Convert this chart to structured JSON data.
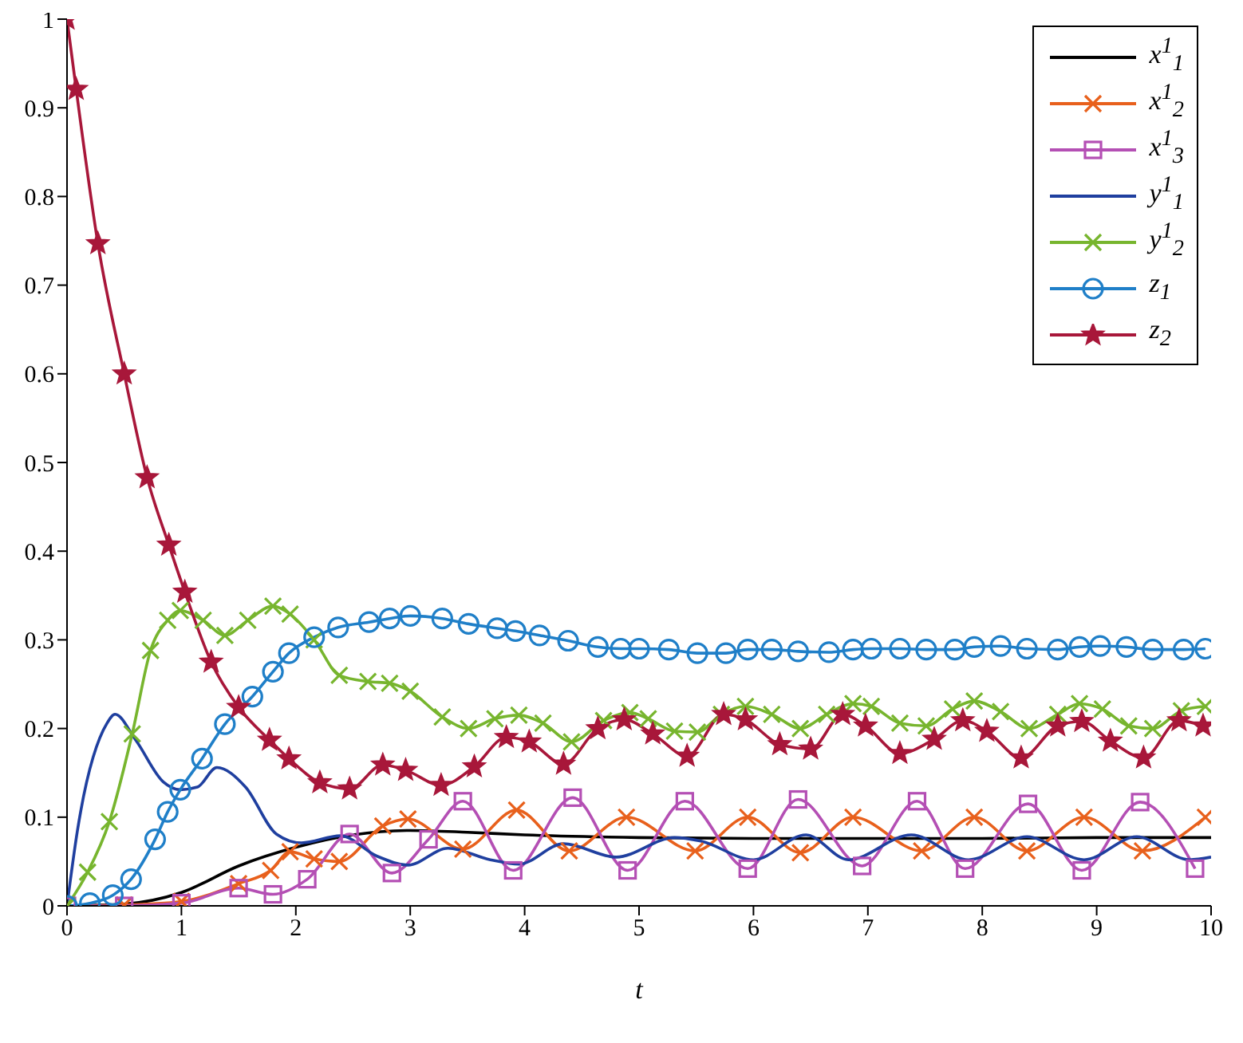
{
  "chart_data": {
    "type": "line",
    "xlabel": "t",
    "xlim": [
      0,
      10
    ],
    "xticks": [
      0,
      1,
      2,
      3,
      4,
      5,
      6,
      7,
      8,
      9,
      10
    ],
    "ylim": [
      0,
      1
    ],
    "yticks": [
      0,
      0.1,
      0.2,
      0.3,
      0.4,
      0.5,
      0.6,
      0.7,
      0.8,
      0.9,
      1
    ],
    "legend": "top right",
    "line_style": "solid",
    "series": [
      {
        "name": "x$^{1}$$_{1}$",
        "color": "#000000",
        "marker": "none",
        "x": [
          0,
          0.5,
          1,
          1.5,
          2,
          2.5,
          3,
          3.5,
          4,
          5,
          6,
          7,
          8,
          9,
          10
        ],
        "values": [
          0,
          0.002,
          0.015,
          0.045,
          0.066,
          0.08,
          0.085,
          0.083,
          0.08,
          0.077,
          0.076,
          0.076,
          0.076,
          0.077,
          0.077
        ]
      },
      {
        "name": "x$^{1}$$_{2}$",
        "color": "#e8601c",
        "marker": "cross",
        "x": [
          0,
          0.5,
          1,
          1.5,
          1.78,
          1.95,
          2.16,
          2.38,
          2.76,
          2.98,
          3.46,
          3.93,
          4.39,
          4.89,
          5.49,
          5.95,
          6.41,
          6.87,
          7.47,
          7.93,
          8.39,
          8.89,
          9.4,
          9.95
        ],
        "values": [
          0,
          0.001,
          0.005,
          0.025,
          0.04,
          0.061,
          0.053,
          0.05,
          0.09,
          0.098,
          0.064,
          0.108,
          0.062,
          0.1,
          0.062,
          0.1,
          0.06,
          0.1,
          0.062,
          0.1,
          0.062,
          0.1,
          0.062,
          0.1
        ]
      },
      {
        "name": "x$^{1}$$_{3}$",
        "color": "#b44fb4",
        "marker": "square",
        "x": [
          0,
          0.5,
          1,
          1.5,
          1.8,
          2.1,
          2.47,
          2.84,
          3.16,
          3.46,
          3.9,
          4.42,
          4.9,
          5.4,
          5.95,
          6.39,
          6.95,
          7.43,
          7.85,
          8.4,
          8.87,
          9.38,
          9.86
        ],
        "values": [
          0,
          0,
          0.003,
          0.02,
          0.013,
          0.03,
          0.081,
          0.037,
          0.075,
          0.118,
          0.04,
          0.122,
          0.04,
          0.118,
          0.042,
          0.12,
          0.045,
          0.118,
          0.042,
          0.115,
          0.04,
          0.117,
          0.042
        ]
      },
      {
        "name": "y$^{1}$$_{1}$",
        "color": "#1f3f9f",
        "marker": "none",
        "x": [
          0,
          0.09,
          0.35,
          0.42,
          0.6,
          0.84,
          0.99,
          1.14,
          1.31,
          1.56,
          1.83,
          2.05,
          2.39,
          2.71,
          2.98,
          3.33,
          3.7,
          3.95,
          4.34,
          4.8,
          5.31,
          5.54,
          6,
          6.46,
          6.83,
          7.38,
          7.88,
          8.39,
          8.89,
          9.35,
          9.81,
          10
        ],
        "values": [
          0,
          0.084,
          0.206,
          0.216,
          0.187,
          0.14,
          0.131,
          0.134,
          0.156,
          0.134,
          0.081,
          0.071,
          0.079,
          0.056,
          0.046,
          0.065,
          0.052,
          0.047,
          0.07,
          0.055,
          0.077,
          0.073,
          0.052,
          0.08,
          0.052,
          0.08,
          0.052,
          0.078,
          0.052,
          0.078,
          0.052,
          0.055
        ]
      },
      {
        "name": "y$^{1}$$_{2}$",
        "color": "#77b52e",
        "marker": "cross",
        "x": [
          0,
          0.18,
          0.37,
          0.57,
          0.73,
          0.88,
          0.99,
          1.19,
          1.38,
          1.58,
          1.8,
          1.95,
          2.16,
          2.38,
          2.63,
          2.82,
          3,
          3.28,
          3.51,
          3.74,
          3.95,
          4.16,
          4.41,
          4.69,
          4.92,
          5.08,
          5.31,
          5.51,
          5.72,
          5.93,
          6.16,
          6.41,
          6.64,
          6.87,
          7.03,
          7.28,
          7.51,
          7.74,
          7.93,
          8.16,
          8.41,
          8.66,
          8.85,
          9.05,
          9.28,
          9.49,
          9.74,
          9.95
        ],
        "values": [
          0,
          0.038,
          0.095,
          0.194,
          0.288,
          0.322,
          0.333,
          0.322,
          0.305,
          0.322,
          0.338,
          0.329,
          0.3,
          0.26,
          0.253,
          0.251,
          0.242,
          0.213,
          0.2,
          0.211,
          0.215,
          0.206,
          0.185,
          0.209,
          0.218,
          0.211,
          0.197,
          0.196,
          0.216,
          0.225,
          0.216,
          0.2,
          0.216,
          0.228,
          0.225,
          0.206,
          0.203,
          0.222,
          0.231,
          0.219,
          0.2,
          0.216,
          0.228,
          0.222,
          0.203,
          0.2,
          0.22,
          0.225
        ]
      },
      {
        "name": "z$_{1}$",
        "color": "#1f7fc8",
        "marker": "circle",
        "x": [
          0,
          0.2,
          0.4,
          0.56,
          0.77,
          0.88,
          0.99,
          1.18,
          1.38,
          1.62,
          1.8,
          1.94,
          2.16,
          2.37,
          2.64,
          2.82,
          3,
          3.28,
          3.51,
          3.76,
          3.92,
          4.13,
          4.38,
          4.64,
          4.84,
          5,
          5.26,
          5.51,
          5.76,
          5.95,
          6.16,
          6.39,
          6.66,
          6.87,
          7.03,
          7.28,
          7.51,
          7.76,
          7.93,
          8.16,
          8.39,
          8.66,
          8.85,
          9.03,
          9.26,
          9.49,
          9.76,
          9.95
        ],
        "values": [
          0,
          0.003,
          0.012,
          0.03,
          0.075,
          0.106,
          0.131,
          0.166,
          0.205,
          0.236,
          0.264,
          0.285,
          0.303,
          0.314,
          0.32,
          0.324,
          0.327,
          0.324,
          0.318,
          0.313,
          0.31,
          0.305,
          0.299,
          0.292,
          0.29,
          0.29,
          0.289,
          0.285,
          0.285,
          0.289,
          0.289,
          0.287,
          0.286,
          0.289,
          0.29,
          0.29,
          0.289,
          0.289,
          0.292,
          0.293,
          0.29,
          0.289,
          0.292,
          0.293,
          0.292,
          0.289,
          0.289,
          0.29
        ]
      },
      {
        "name": "z$_{2}$",
        "color": "#a8173a",
        "marker": "star",
        "x": [
          0,
          0.08,
          0.27,
          0.5,
          0.7,
          0.89,
          1.03,
          1.26,
          1.5,
          1.77,
          1.94,
          2.21,
          2.47,
          2.76,
          2.96,
          3.27,
          3.56,
          3.84,
          4.04,
          4.34,
          4.64,
          4.87,
          5.12,
          5.42,
          5.74,
          5.93,
          6.23,
          6.5,
          6.78,
          6.98,
          7.28,
          7.58,
          7.83,
          8.04,
          8.34,
          8.66,
          8.87,
          9.12,
          9.41,
          9.72,
          9.93
        ],
        "values": [
          1,
          0.921,
          0.747,
          0.6,
          0.483,
          0.407,
          0.354,
          0.275,
          0.224,
          0.187,
          0.166,
          0.139,
          0.132,
          0.159,
          0.153,
          0.136,
          0.157,
          0.19,
          0.185,
          0.16,
          0.2,
          0.21,
          0.194,
          0.169,
          0.216,
          0.21,
          0.182,
          0.177,
          0.216,
          0.203,
          0.172,
          0.188,
          0.209,
          0.197,
          0.167,
          0.203,
          0.208,
          0.186,
          0.167,
          0.209,
          0.203
        ]
      }
    ]
  }
}
